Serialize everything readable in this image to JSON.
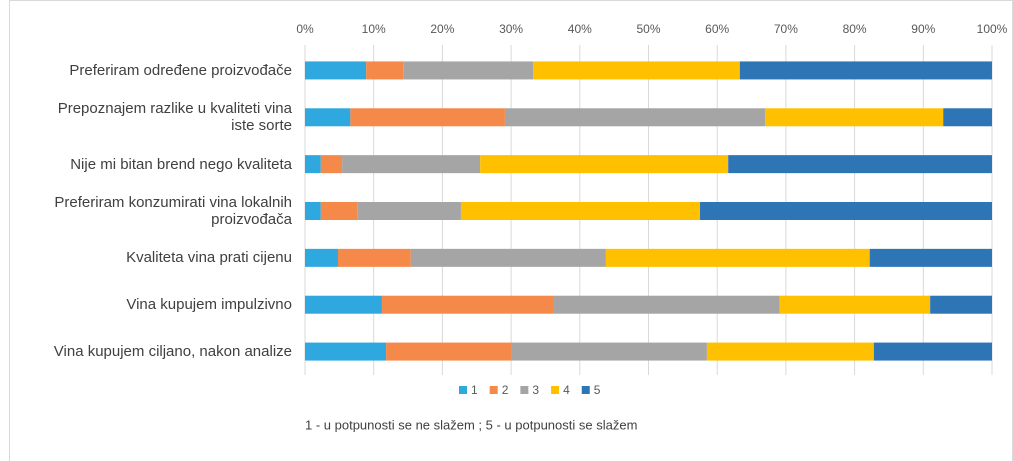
{
  "chart_data": {
    "type": "stacked-bar-horizontal",
    "categories": [
      "Preferiram određene proizvođače",
      "Prepoznajem razlike u kvaliteti vina iste sorte",
      "Nije mi bitan brend nego kvaliteta",
      "Preferiram konzumirati vina lokalnih proizvođača",
      "Kvaliteta vina prati cijenu",
      "Vina kupujem impulzivno",
      "Vina kupujem ciljano, nakon analize"
    ],
    "series": [
      {
        "name": "1",
        "color": "#2ea8df",
        "values": [
          8.9,
          6.6,
          2.3,
          2.3,
          4.8,
          11.2,
          11.8
        ]
      },
      {
        "name": "2",
        "color": "#f4894a",
        "values": [
          5.4,
          22.5,
          3.1,
          5.3,
          10.6,
          24.9,
          18.2
        ]
      },
      {
        "name": "3",
        "color": "#a5a5a5",
        "values": [
          18.9,
          37.9,
          20.1,
          15.1,
          28.4,
          33.0,
          28.5
        ]
      },
      {
        "name": "4",
        "color": "#ffc000",
        "values": [
          30.1,
          25.9,
          36.1,
          34.8,
          38.4,
          21.9,
          24.3
        ]
      },
      {
        "name": "5",
        "color": "#2e75b6",
        "values": [
          36.7,
          7.1,
          38.4,
          42.5,
          17.8,
          9.0,
          17.2
        ]
      }
    ],
    "xlim": [
      0,
      100
    ],
    "xticks": [
      {
        "value": 0,
        "label": "0%"
      },
      {
        "value": 10,
        "label": "10%"
      },
      {
        "value": 20,
        "label": "20%"
      },
      {
        "value": 30,
        "label": "30%"
      },
      {
        "value": 40,
        "label": "40%"
      },
      {
        "value": 50,
        "label": "50%"
      },
      {
        "value": 60,
        "label": "60%"
      },
      {
        "value": 70,
        "label": "70%"
      },
      {
        "value": 80,
        "label": "80%"
      },
      {
        "value": 90,
        "label": "90%"
      },
      {
        "value": 100,
        "label": "100%"
      }
    ],
    "grid": true,
    "legend": "bottom",
    "note": "1 - u potpunosti se ne slažem ; 5 - u potpunosti se slažem"
  }
}
